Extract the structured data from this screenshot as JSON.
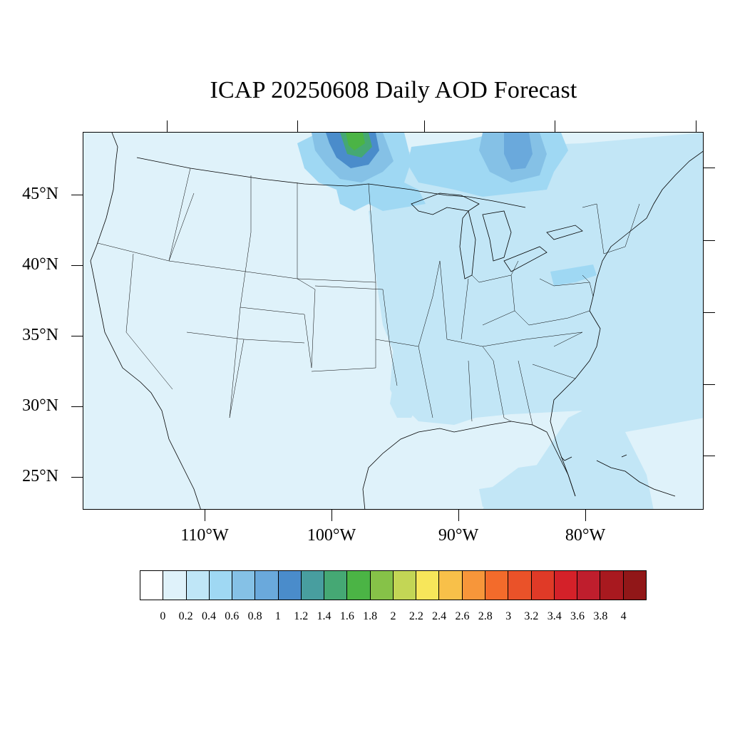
{
  "title": "ICAP 20250608 Daily AOD Forecast",
  "colors": {
    "background_land": "#dff2fa",
    "ocean_east": "#c2e6f6",
    "boundary_line": "#000000"
  },
  "latitude_labels": [
    "45°N",
    "40°N",
    "35°N",
    "30°N",
    "25°N"
  ],
  "longitude_labels": [
    "110°W",
    "100°W",
    "90°W",
    "80°W"
  ],
  "colorbar": {
    "levels": [
      "0",
      "0.2",
      "0.4",
      "0.6",
      "0.8",
      "1",
      "1.2",
      "1.4",
      "1.6",
      "1.8",
      "2",
      "2.2",
      "2.4",
      "2.6",
      "2.8",
      "3",
      "3.2",
      "3.4",
      "3.6",
      "3.8",
      "4"
    ],
    "colors": [
      "#ffffff",
      "#dff2fa",
      "#bfe6f7",
      "#9fd8f3",
      "#85c1e6",
      "#6aa9dc",
      "#4a8ccb",
      "#489e9f",
      "#45a874",
      "#4bb445",
      "#86c248",
      "#c3d655",
      "#f7e65a",
      "#f8c049",
      "#f7963a",
      "#f36b2b",
      "#ea5229",
      "#e03a27",
      "#d42129",
      "#bf1e2d",
      "#a8191f",
      "#911718"
    ]
  },
  "aod_regions": [
    {
      "name": "smoke-plume-north-dakota",
      "level_index": 4
    },
    {
      "name": "smoke-core-north-dakota",
      "level_index": 6
    },
    {
      "name": "smoke-peak",
      "level_index": 9
    },
    {
      "name": "smoke-plume-lake-superior",
      "level_index": 4
    },
    {
      "name": "east-coast-haze",
      "level_index": 2
    },
    {
      "name": "gulf-haze",
      "level_index": 2
    }
  ]
}
